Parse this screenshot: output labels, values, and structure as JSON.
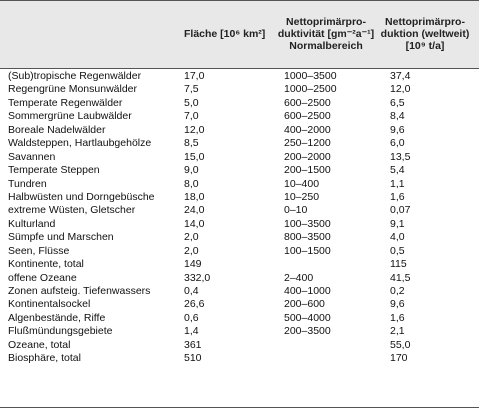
{
  "header": {
    "col_area": "Fläche [10⁶ km²]",
    "col_npp_unit": [
      "Nettoprimärpro-",
      "duktivität [gm⁻²a⁻¹]",
      "Normalbereich"
    ],
    "col_npp_world": [
      "Nettoprimärpro-",
      "duktion (weltweit)",
      "[10⁹ t/a]"
    ]
  },
  "rows": [
    {
      "name": "(Sub)tropische Regenwälder",
      "area": "17,0",
      "npp_range": "1000–3500",
      "npp_world": "37,4"
    },
    {
      "name": "Regengrüne Monsunwälder",
      "area": "7,5",
      "npp_range": "1000–2500",
      "npp_world": "12,0"
    },
    {
      "name": "Temperate Regenwälder",
      "area": "5,0",
      "npp_range": "600–2500",
      "npp_world": "6,5"
    },
    {
      "name": "Sommergrüne Laubwälder",
      "area": "7,0",
      "npp_range": "600–2500",
      "npp_world": "8,4"
    },
    {
      "name": "Boreale Nadelwälder",
      "area": "12,0",
      "npp_range": "400–2000",
      "npp_world": "9,6"
    },
    {
      "name": "Waldsteppen, Hartlaubgehölze",
      "area": "8,5",
      "npp_range": "250–1200",
      "npp_world": "6,0"
    },
    {
      "name": "Savannen",
      "area": "15,0",
      "npp_range": "200–2000",
      "npp_world": "13,5"
    },
    {
      "name": "Temperate Steppen",
      "area": "9,0",
      "npp_range": "200–1500",
      "npp_world": "5,4"
    },
    {
      "name": "Tundren",
      "area": "8,0",
      "npp_range": "10–400",
      "npp_world": "1,1"
    },
    {
      "name": "Halbwüsten und Dorngebüsche",
      "area": "18,0",
      "npp_range": "10–250",
      "npp_world": "1,6"
    },
    {
      "name": "extreme Wüsten, Gletscher",
      "area": "24,0",
      "npp_range": "0–10",
      "npp_world": "0,07"
    },
    {
      "name": "Kulturland",
      "area": "14,0",
      "npp_range": "100–3500",
      "npp_world": "9,1"
    },
    {
      "name": "Sümpfe und Marschen",
      "area": "2,0",
      "npp_range": "800–3500",
      "npp_world": "4,0"
    },
    {
      "name": "Seen, Flüsse",
      "area": "2,0",
      "npp_range": "100–1500",
      "npp_world": "0,5"
    },
    {
      "name": "Kontinente, total",
      "area": "149",
      "npp_range": "",
      "npp_world": "115"
    },
    {
      "name": "offene Ozeane",
      "area": "332,0",
      "npp_range": "2–400",
      "npp_world": "41,5"
    },
    {
      "name": "Zonen aufsteig. Tiefenwassers",
      "area": "0,4",
      "npp_range": "400–1000",
      "npp_world": "0,2"
    },
    {
      "name": "Kontinentalsockel",
      "area": "26,6",
      "npp_range": "200–600",
      "npp_world": "9,6"
    },
    {
      "name": "Algenbestände, Riffe",
      "area": "0,6",
      "npp_range": "500–4000",
      "npp_world": "1,6"
    },
    {
      "name": "Flußmündungsgebiete",
      "area": "1,4",
      "npp_range": "200–3500",
      "npp_world": "2,1"
    },
    {
      "name": "Ozeane, total",
      "area": "361",
      "npp_range": "",
      "npp_world": "55,0"
    },
    {
      "name": "Biosphäre, total",
      "area": "510",
      "npp_range": "",
      "npp_world": "170"
    }
  ]
}
